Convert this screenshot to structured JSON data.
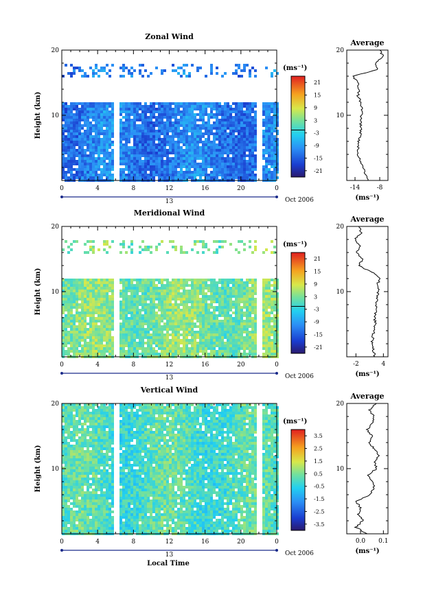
{
  "figure": {
    "xlabel": "Local Time",
    "ylabel": "Height (km)",
    "date_label": "Oct 2006",
    "day_label": "13",
    "unit_label": "(ms⁻¹)",
    "average_title": "Average"
  },
  "chart_data": [
    {
      "type": "heatmap",
      "title": "Zonal Wind",
      "ylabel": "Height (km)",
      "xticks": [
        "0",
        "4",
        "8",
        "12",
        "16",
        "20",
        "0"
      ],
      "yticks": [
        "10",
        "20"
      ],
      "xlim": [
        0,
        24
      ],
      "ylim": [
        0,
        20
      ],
      "colorbar": {
        "ticks": [
          "21",
          "15",
          "9",
          "3",
          "-3",
          "-9",
          "-15",
          "-21"
        ],
        "range": [
          -24,
          24
        ]
      },
      "data_gaps": [
        [
          5.8,
          6.3
        ],
        [
          21.6,
          22.1
        ]
      ],
      "valid_height_km": [
        0,
        12
      ],
      "mean_value": -12,
      "upper_layer_km": [
        16,
        18
      ],
      "average_profile": {
        "xticks": [
          "-14",
          "-8"
        ],
        "xlim": [
          -16,
          -6
        ],
        "height_km": [
          0,
          1,
          2,
          3,
          4,
          5,
          6,
          7,
          8,
          9,
          10,
          11,
          12,
          13,
          14,
          15,
          16,
          17,
          18,
          19,
          20
        ],
        "values": [
          -10.8,
          -11.4,
          -12,
          -12.6,
          -13.2,
          -13.3,
          -13.1,
          -12.8,
          -12.6,
          -12.7,
          -12.5,
          -12.3,
          -12.6,
          -13.3,
          -13,
          -13.2,
          -14.5,
          -8.5,
          -9,
          -7.2,
          -8
        ]
      }
    },
    {
      "type": "heatmap",
      "title": "Meridional Wind",
      "ylabel": "Height (km)",
      "xticks": [
        "0",
        "4",
        "8",
        "12",
        "16",
        "20",
        "0"
      ],
      "yticks": [
        "10",
        "20"
      ],
      "xlim": [
        0,
        24
      ],
      "ylim": [
        0,
        20
      ],
      "colorbar": {
        "ticks": [
          "21",
          "15",
          "9",
          "3",
          "-3",
          "-9",
          "-15",
          "-21"
        ],
        "range": [
          -24,
          24
        ]
      },
      "data_gaps": [
        [
          5.8,
          6.3
        ],
        [
          21.6,
          22.1
        ]
      ],
      "valid_height_km": [
        0,
        12
      ],
      "mean_value": 3,
      "upper_layer_km": [
        16,
        18
      ],
      "average_profile": {
        "xticks": [
          "-2",
          "4"
        ],
        "xlim": [
          -4,
          5
        ],
        "height_km": [
          0,
          1,
          2,
          3,
          4,
          5,
          6,
          7,
          8,
          9,
          10,
          11,
          12,
          13,
          14,
          15,
          16,
          17,
          18,
          19,
          20
        ],
        "values": [
          2.2,
          1.8,
          1.5,
          1.7,
          1.9,
          2.2,
          2.1,
          2.4,
          2.3,
          2.6,
          2.9,
          2.7,
          3.2,
          1.5,
          -1.5,
          -0.5,
          -1.8,
          -1,
          -2.2,
          -0.8,
          -1.4
        ]
      }
    },
    {
      "type": "heatmap",
      "title": "Vertical Wind",
      "ylabel": "Height (km)",
      "xticks": [
        "0",
        "4",
        "8",
        "12",
        "16",
        "20",
        "0"
      ],
      "yticks": [
        "10",
        "20"
      ],
      "xlim": [
        0,
        24
      ],
      "ylim": [
        0,
        20
      ],
      "colorbar": {
        "ticks": [
          "3.5",
          "2.5",
          "1.5",
          "0.5",
          "-0.5",
          "-1.5",
          "-2.5",
          "-3.5"
        ],
        "range": [
          -4,
          4
        ]
      },
      "data_gaps": [
        [
          5.8,
          6.3
        ],
        [
          21.6,
          22.1
        ]
      ],
      "valid_height_km": [
        0,
        20
      ],
      "mean_value": 0,
      "upper_layer_km": [
        13,
        19
      ],
      "average_profile": {
        "xticks": [
          "0.0",
          "0.1"
        ],
        "xlim": [
          -0.06,
          0.12
        ],
        "height_km": [
          0,
          1,
          2,
          3,
          4,
          5,
          6,
          7,
          8,
          9,
          10,
          11,
          12,
          13,
          14,
          15,
          16,
          17,
          18,
          19,
          20
        ],
        "values": [
          0.03,
          -0.02,
          0.01,
          -0.01,
          0.0,
          -0.02,
          0.04,
          0.06,
          0.05,
          0.03,
          0.07,
          0.06,
          0.08,
          0.06,
          0.04,
          0.05,
          0.03,
          0.05,
          0.06,
          0.04,
          0.07
        ]
      }
    }
  ]
}
